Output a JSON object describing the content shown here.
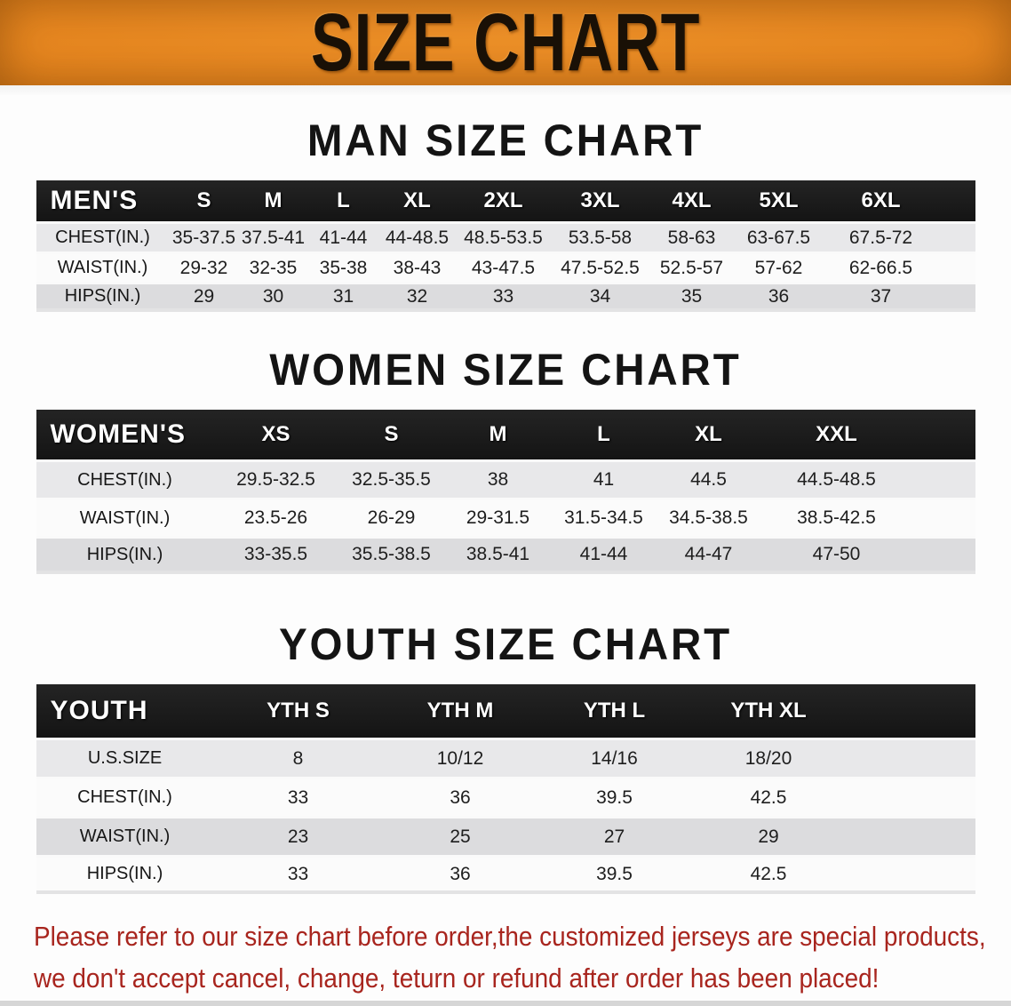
{
  "banner": {
    "title": "SIZE CHART"
  },
  "colors": {
    "banner_orange": "#e8861e",
    "table_header_black": "#1b1b1b",
    "row_light_gray": "#e8e8ea",
    "row_white": "#fbfbfb",
    "row_gray": "#dcdcde",
    "note_red": "#a8251e"
  },
  "sections": [
    {
      "title": "MAN SIZE CHART",
      "table": {
        "header_label": "MEN'S",
        "columns": [
          "S",
          "M",
          "L",
          "XL",
          "2XL",
          "3XL",
          "4XL",
          "5XL",
          "6XL"
        ],
        "rows": [
          {
            "label": "CHEST(IN.)",
            "values": [
              "35-37.5",
              "37.5-41",
              "41-44",
              "44-48.5",
              "48.5-53.5",
              "53.5-58",
              "58-63",
              "63-67.5",
              "67.5-72"
            ]
          },
          {
            "label": "WAIST(IN.)",
            "values": [
              "29-32",
              "32-35",
              "35-38",
              "38-43",
              "43-47.5",
              "47.5-52.5",
              "52.5-57",
              "57-62",
              "62-66.5"
            ]
          },
          {
            "label": "HIPS(IN.)",
            "values": [
              "29",
              "30",
              "31",
              "32",
              "33",
              "34",
              "35",
              "36",
              "37"
            ]
          }
        ]
      }
    },
    {
      "title": "WOMEN SIZE CHART",
      "table": {
        "header_label": "WOMEN'S",
        "columns": [
          "XS",
          "S",
          "M",
          "L",
          "XL",
          "XXL"
        ],
        "rows": [
          {
            "label": "CHEST(IN.)",
            "values": [
              "29.5-32.5",
              "32.5-35.5",
              "38",
              "41",
              "44.5",
              "44.5-48.5"
            ]
          },
          {
            "label": "WAIST(IN.)",
            "values": [
              "23.5-26",
              "26-29",
              "29-31.5",
              "31.5-34.5",
              "34.5-38.5",
              "38.5-42.5"
            ]
          },
          {
            "label": "HIPS(IN.)",
            "values": [
              "33-35.5",
              "35.5-38.5",
              "38.5-41",
              "41-44",
              "44-47",
              "47-50"
            ]
          }
        ]
      }
    },
    {
      "title": "YOUTH SIZE CHART",
      "table": {
        "header_label": "YOUTH",
        "columns": [
          "YTH S",
          "YTH M",
          "YTH L",
          "YTH XL"
        ],
        "rows": [
          {
            "label": "U.S.SIZE",
            "values": [
              "8",
              "10/12",
              "14/16",
              "18/20"
            ]
          },
          {
            "label": "CHEST(IN.)",
            "values": [
              "33",
              "36",
              "39.5",
              "42.5"
            ]
          },
          {
            "label": "WAIST(IN.)",
            "values": [
              "23",
              "25",
              "27",
              "29"
            ]
          },
          {
            "label": "HIPS(IN.)",
            "values": [
              "33",
              "36",
              "39.5",
              "42.5"
            ]
          }
        ]
      }
    }
  ],
  "note": {
    "line1": "Please refer to our size chart before order,the customized jerseys are special products,",
    "line2": "we don't accept cancel, change, teturn or refund after order has been placed!"
  }
}
